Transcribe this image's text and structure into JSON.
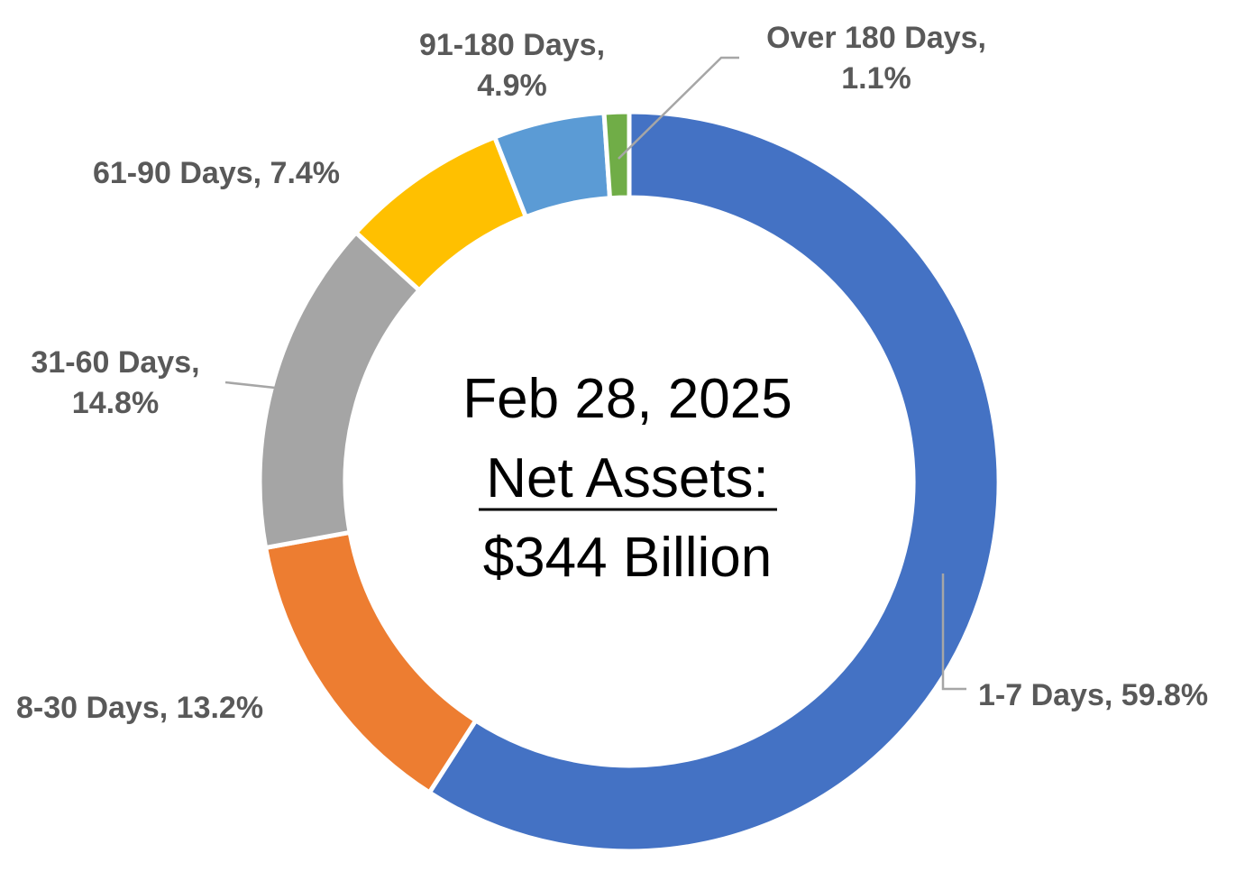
{
  "chart_data": {
    "type": "pie",
    "variant": "donut",
    "categories": [
      "1-7 Days",
      "8-30 Days",
      "31-60 Days",
      "61-90 Days",
      "91-180 Days",
      "Over 180 Days"
    ],
    "values": [
      59.8,
      13.2,
      14.8,
      7.4,
      4.9,
      1.1
    ],
    "unit": "%",
    "colors": [
      "#4472C4",
      "#ED7D31",
      "#A5A5A5",
      "#FFC000",
      "#5B9BD5",
      "#70AD47"
    ],
    "data_labels": [
      [
        "1-7 Days, 59.8%"
      ],
      [
        "8-30 Days, 13.2%"
      ],
      [
        "31-60 Days,",
        "14.8%"
      ],
      [
        "61-90 Days, 7.4%"
      ],
      [
        "91-180 Days,",
        "4.9%"
      ],
      [
        "Over 180 Days,",
        "1.1%"
      ]
    ],
    "start_angle_deg": 0,
    "direction": "clockwise",
    "legend": "none"
  },
  "center_label": {
    "date": "Feb 28, 2025",
    "heading": "Net Assets:",
    "amount": "$344 Billion"
  }
}
